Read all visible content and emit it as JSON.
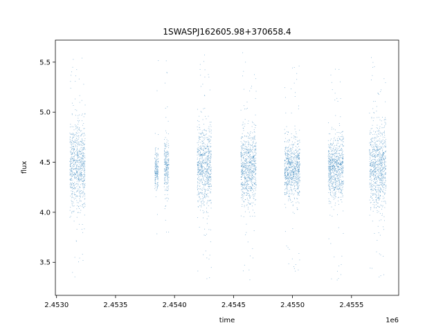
{
  "chart_data": {
    "type": "scatter",
    "title": "1SWASPJ162605.98+370658.4",
    "xlabel": "time",
    "ylabel": "flux",
    "x_offset_label": "1e6",
    "xlim": [
      2452990,
      2455900
    ],
    "ylim": [
      3.17,
      5.72
    ],
    "x_ticks": [
      2453000,
      2453500,
      2454000,
      2454500,
      2455000,
      2455500
    ],
    "x_tick_labels": [
      "2.4530",
      "2.4535",
      "2.4540",
      "2.4545",
      "2.4550",
      "2.4555"
    ],
    "y_ticks": [
      3.5,
      4.0,
      4.5,
      5.0,
      5.5
    ],
    "y_tick_labels": [
      "3.5",
      "4.0",
      "4.5",
      "5.0",
      "5.5"
    ],
    "grid": false,
    "legend": false,
    "marker_color": "#1f77b4",
    "series": [
      {
        "points_summary": "dense vertical clusters of observations",
        "clusters": [
          {
            "x_start": 2453110,
            "x_end": 2453240,
            "center": 4.46,
            "spread": 0.22,
            "y_min": 3.32,
            "y_max": 5.6
          },
          {
            "x_start": 2453830,
            "x_end": 2453860,
            "center": 4.42,
            "spread": 0.1,
            "y_min": 3.32,
            "y_max": 5.55
          },
          {
            "x_start": 2453910,
            "x_end": 2453950,
            "center": 4.45,
            "spread": 0.14,
            "y_min": 3.8,
            "y_max": 5.56
          },
          {
            "x_start": 2454190,
            "x_end": 2454310,
            "center": 4.46,
            "spread": 0.2,
            "y_min": 3.3,
            "y_max": 5.58
          },
          {
            "x_start": 2454560,
            "x_end": 2454690,
            "center": 4.44,
            "spread": 0.18,
            "y_min": 3.3,
            "y_max": 5.65
          },
          {
            "x_start": 2454930,
            "x_end": 2455060,
            "center": 4.44,
            "spread": 0.14,
            "y_min": 3.38,
            "y_max": 5.47
          },
          {
            "x_start": 2455300,
            "x_end": 2455430,
            "center": 4.44,
            "spread": 0.16,
            "y_min": 3.3,
            "y_max": 5.5
          },
          {
            "x_start": 2455650,
            "x_end": 2455790,
            "center": 4.45,
            "spread": 0.2,
            "y_min": 3.33,
            "y_max": 5.6
          }
        ]
      }
    ]
  }
}
